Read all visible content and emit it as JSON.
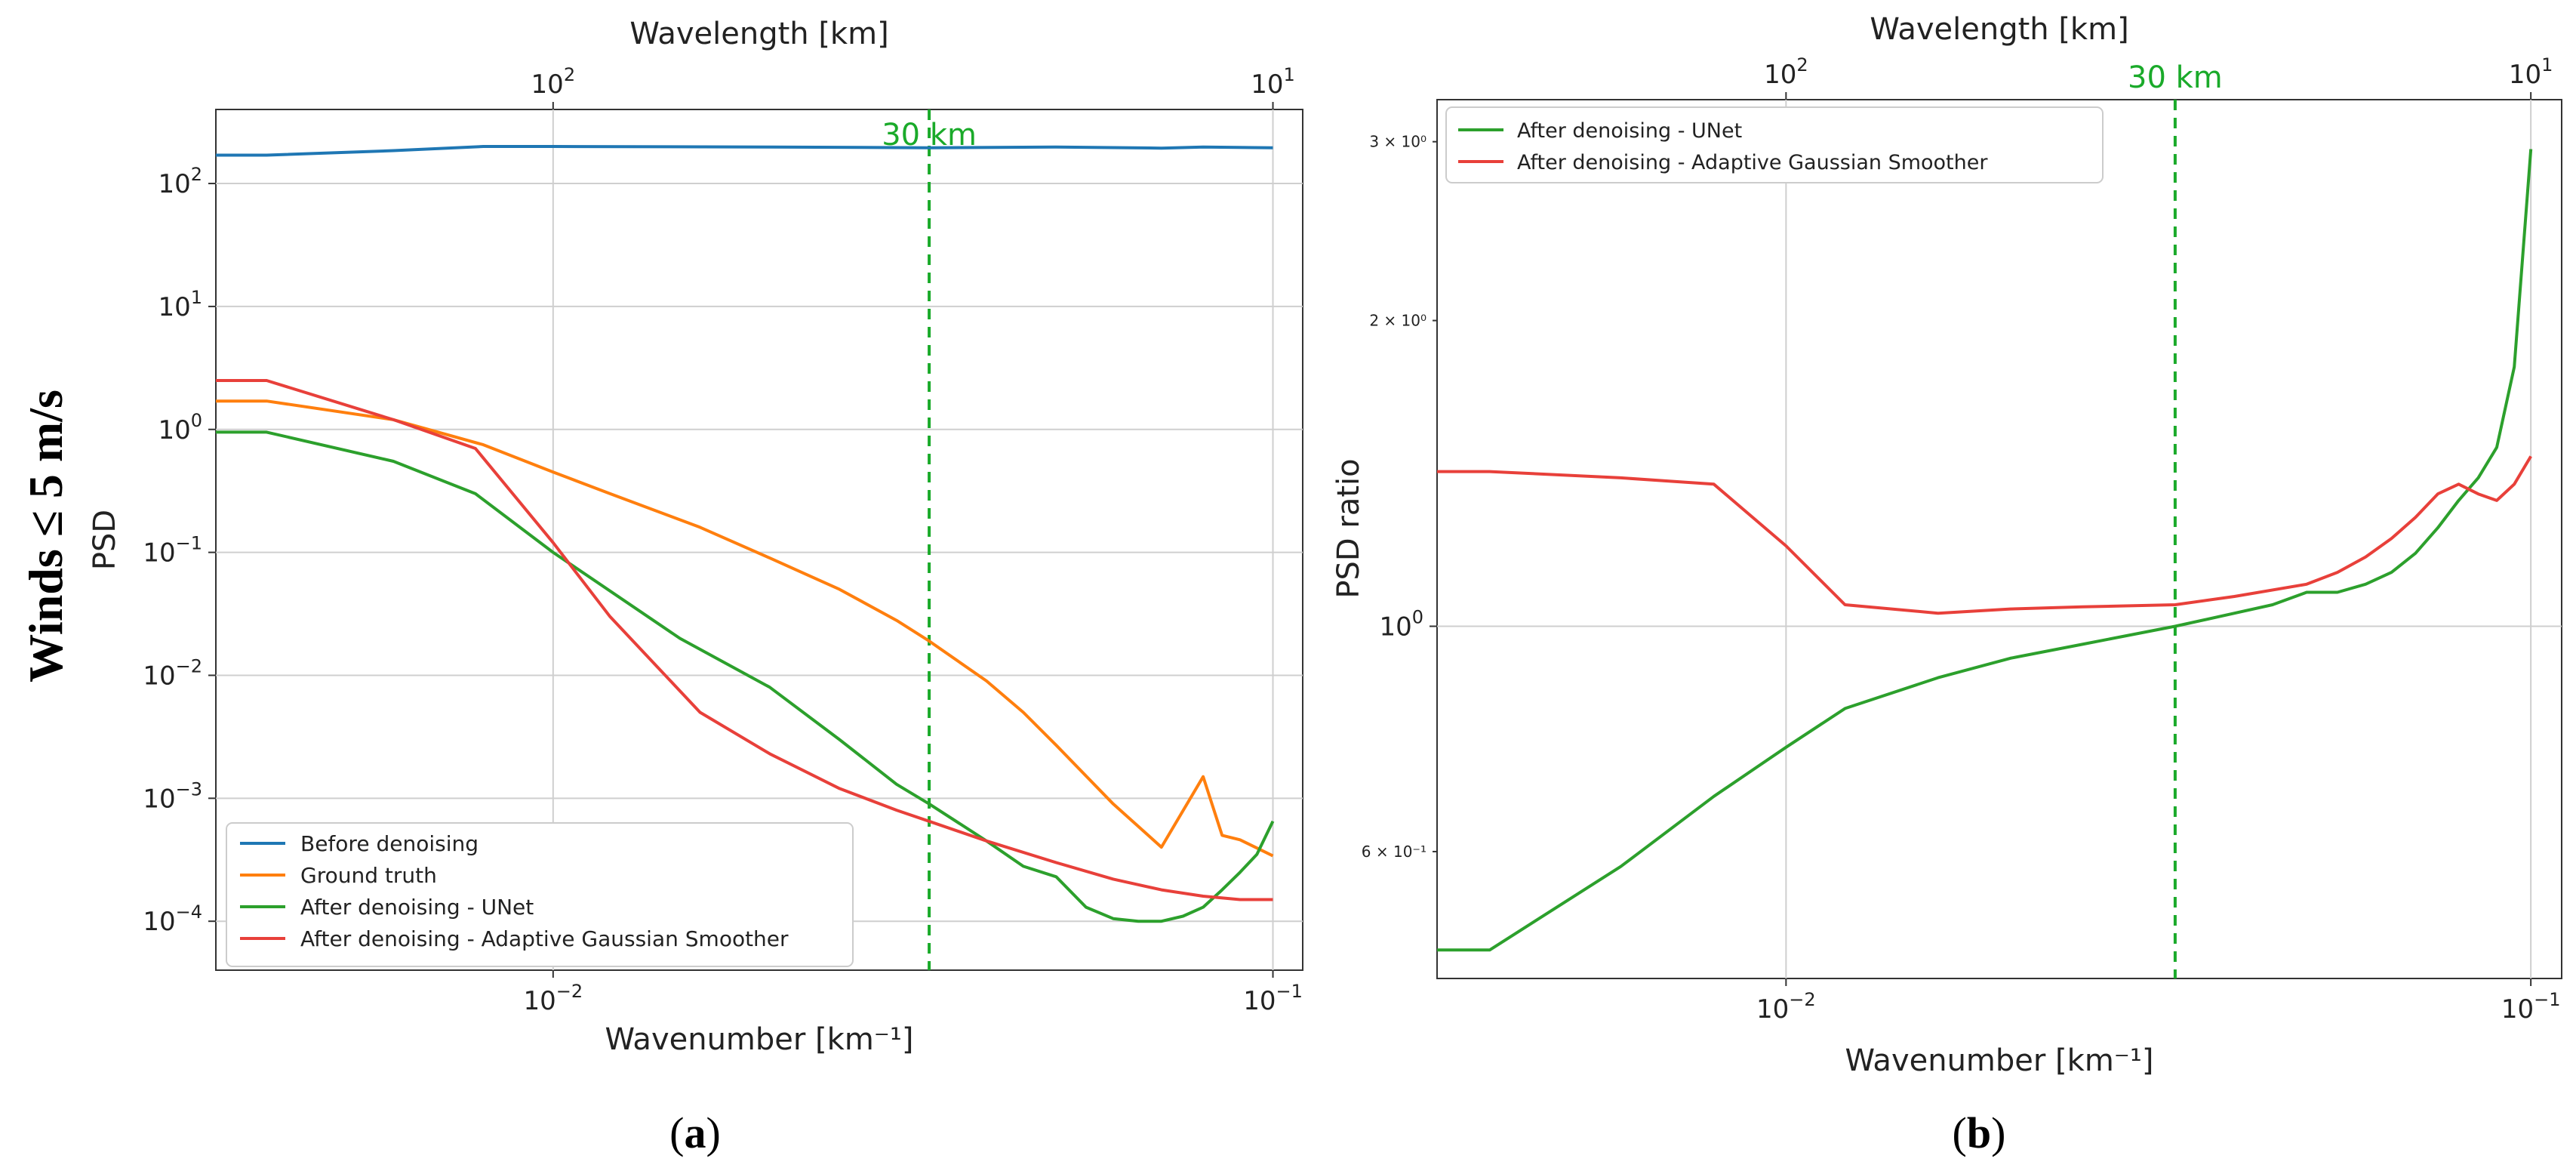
{
  "figure": {
    "row_label": "Winds ≤ 5 m/s",
    "panel_a_label": "(a)",
    "panel_b_label": "(b)"
  },
  "chart_data": [
    {
      "id": "a",
      "type": "line",
      "xscale": "log",
      "yscale": "log",
      "xlabel": "Wavenumber [km⁻¹]",
      "ylabel": "PSD",
      "top_xlabel": "Wavelength [km]",
      "xlim": [
        0.0034,
        0.11
      ],
      "ylim": [
        4e-05,
        400
      ],
      "grid": true,
      "x_ticks": [
        {
          "value": 0.01,
          "base": "10",
          "exp": "−2"
        },
        {
          "value": 0.1,
          "base": "10",
          "exp": "−1"
        }
      ],
      "top_ticks": [
        {
          "value": 0.01,
          "base": "10",
          "exp": "2"
        },
        {
          "value": 0.1,
          "base": "10",
          "exp": "1"
        }
      ],
      "y_ticks": [
        {
          "value": 100,
          "base": "10",
          "exp": "2"
        },
        {
          "value": 10,
          "base": "10",
          "exp": "1"
        },
        {
          "value": 1,
          "base": "10",
          "exp": "0"
        },
        {
          "value": 0.1,
          "base": "10",
          "exp": "−1"
        },
        {
          "value": 0.01,
          "base": "10",
          "exp": "−2"
        },
        {
          "value": 0.001,
          "base": "10",
          "exp": "−3"
        },
        {
          "value": 0.0001,
          "base": "10",
          "exp": "−4"
        }
      ],
      "vline": {
        "x": 0.0333,
        "label": "30 km",
        "color": "#1aaa2a"
      },
      "legend_position": "lower-left",
      "series": [
        {
          "name": "Before denoising",
          "color": "#1f77b4",
          "x": [
            0.0034,
            0.004,
            0.006,
            0.008,
            0.01,
            0.02,
            0.03,
            0.0333,
            0.05,
            0.07,
            0.08,
            0.1
          ],
          "y": [
            170,
            170,
            185,
            200,
            200,
            198,
            196,
            195,
            198,
            194,
            198,
            195
          ]
        },
        {
          "name": "Ground truth",
          "color": "#ff7f0e",
          "x": [
            0.0034,
            0.004,
            0.006,
            0.008,
            0.01,
            0.012,
            0.016,
            0.02,
            0.025,
            0.03,
            0.0333,
            0.04,
            0.045,
            0.05,
            0.06,
            0.07,
            0.08,
            0.085,
            0.09,
            0.1
          ],
          "y": [
            1.7,
            1.7,
            1.2,
            0.75,
            0.45,
            0.3,
            0.16,
            0.09,
            0.05,
            0.028,
            0.019,
            0.009,
            0.005,
            0.0027,
            0.0009,
            0.0004,
            0.0015,
            0.0005,
            0.00046,
            0.00034
          ]
        },
        {
          "name": "After denoising - UNet",
          "color": "#2ca02c",
          "x": [
            0.0034,
            0.004,
            0.006,
            0.0078,
            0.01,
            0.015,
            0.02,
            0.025,
            0.03,
            0.0333,
            0.04,
            0.045,
            0.05,
            0.055,
            0.06,
            0.065,
            0.07,
            0.075,
            0.08,
            0.085,
            0.09,
            0.095,
            0.1
          ],
          "y": [
            0.95,
            0.95,
            0.55,
            0.3,
            0.1,
            0.02,
            0.008,
            0.003,
            0.0013,
            0.0009,
            0.00045,
            0.00028,
            0.00023,
            0.00013,
            0.000105,
            0.0001,
            0.0001,
            0.00011,
            0.00013,
            0.00018,
            0.00025,
            0.00035,
            0.00065
          ]
        },
        {
          "name": "After denoising - Adaptive Gaussian Smoother",
          "color": "#e8403a",
          "x": [
            0.0034,
            0.004,
            0.006,
            0.0078,
            0.01,
            0.012,
            0.016,
            0.02,
            0.025,
            0.03,
            0.0333,
            0.04,
            0.05,
            0.06,
            0.07,
            0.08,
            0.09,
            0.1
          ],
          "y": [
            2.5,
            2.5,
            1.2,
            0.7,
            0.12,
            0.03,
            0.005,
            0.0023,
            0.0012,
            0.0008,
            0.00065,
            0.00045,
            0.0003,
            0.00022,
            0.00018,
            0.00016,
            0.00015,
            0.00015
          ]
        }
      ]
    },
    {
      "id": "b",
      "type": "line",
      "xscale": "log",
      "yscale": "log",
      "xlabel": "Wavenumber [km⁻¹]",
      "ylabel": "PSD ratio",
      "top_xlabel": "Wavelength [km]",
      "xlim": [
        0.0034,
        0.11
      ],
      "ylim": [
        0.45,
        3.3
      ],
      "grid": true,
      "x_ticks": [
        {
          "value": 0.01,
          "base": "10",
          "exp": "−2"
        },
        {
          "value": 0.1,
          "base": "10",
          "exp": "−1"
        }
      ],
      "top_ticks": [
        {
          "value": 0.01,
          "base": "10",
          "exp": "2"
        },
        {
          "value": 0.1,
          "base": "10",
          "exp": "1"
        }
      ],
      "y_ticks_major": [
        {
          "value": 1,
          "base": "10",
          "exp": "0"
        }
      ],
      "y_ticks_minor": [
        {
          "value": 3,
          "label": "3 × 10⁰"
        },
        {
          "value": 2,
          "label": "2 × 10⁰"
        },
        {
          "value": 0.6,
          "label": "6 × 10⁻¹"
        }
      ],
      "vline": {
        "x": 0.0333,
        "label": "30 km",
        "color": "#1aaa2a"
      },
      "legend_position": "upper-left",
      "series": [
        {
          "name": "After denoising - UNet",
          "color": "#2ca02c",
          "x": [
            0.0034,
            0.004,
            0.006,
            0.008,
            0.01,
            0.012,
            0.016,
            0.02,
            0.025,
            0.0333,
            0.04,
            0.045,
            0.05,
            0.055,
            0.06,
            0.065,
            0.07,
            0.075,
            0.08,
            0.085,
            0.09,
            0.095,
            0.1
          ],
          "y": [
            0.48,
            0.48,
            0.58,
            0.68,
            0.76,
            0.83,
            0.89,
            0.93,
            0.96,
            1.0,
            1.03,
            1.05,
            1.08,
            1.08,
            1.1,
            1.13,
            1.18,
            1.25,
            1.33,
            1.4,
            1.5,
            1.8,
            2.95
          ]
        },
        {
          "name": "After denoising -  Adaptive Gaussian Smoother",
          "color": "#e8403a",
          "x": [
            0.0034,
            0.004,
            0.006,
            0.008,
            0.01,
            0.012,
            0.016,
            0.02,
            0.025,
            0.0333,
            0.04,
            0.05,
            0.055,
            0.06,
            0.065,
            0.07,
            0.075,
            0.08,
            0.085,
            0.09,
            0.095,
            0.1
          ],
          "y": [
            1.42,
            1.42,
            1.4,
            1.38,
            1.2,
            1.05,
            1.03,
            1.04,
            1.045,
            1.05,
            1.07,
            1.1,
            1.13,
            1.17,
            1.22,
            1.28,
            1.35,
            1.38,
            1.35,
            1.33,
            1.38,
            1.47
          ]
        }
      ]
    }
  ]
}
